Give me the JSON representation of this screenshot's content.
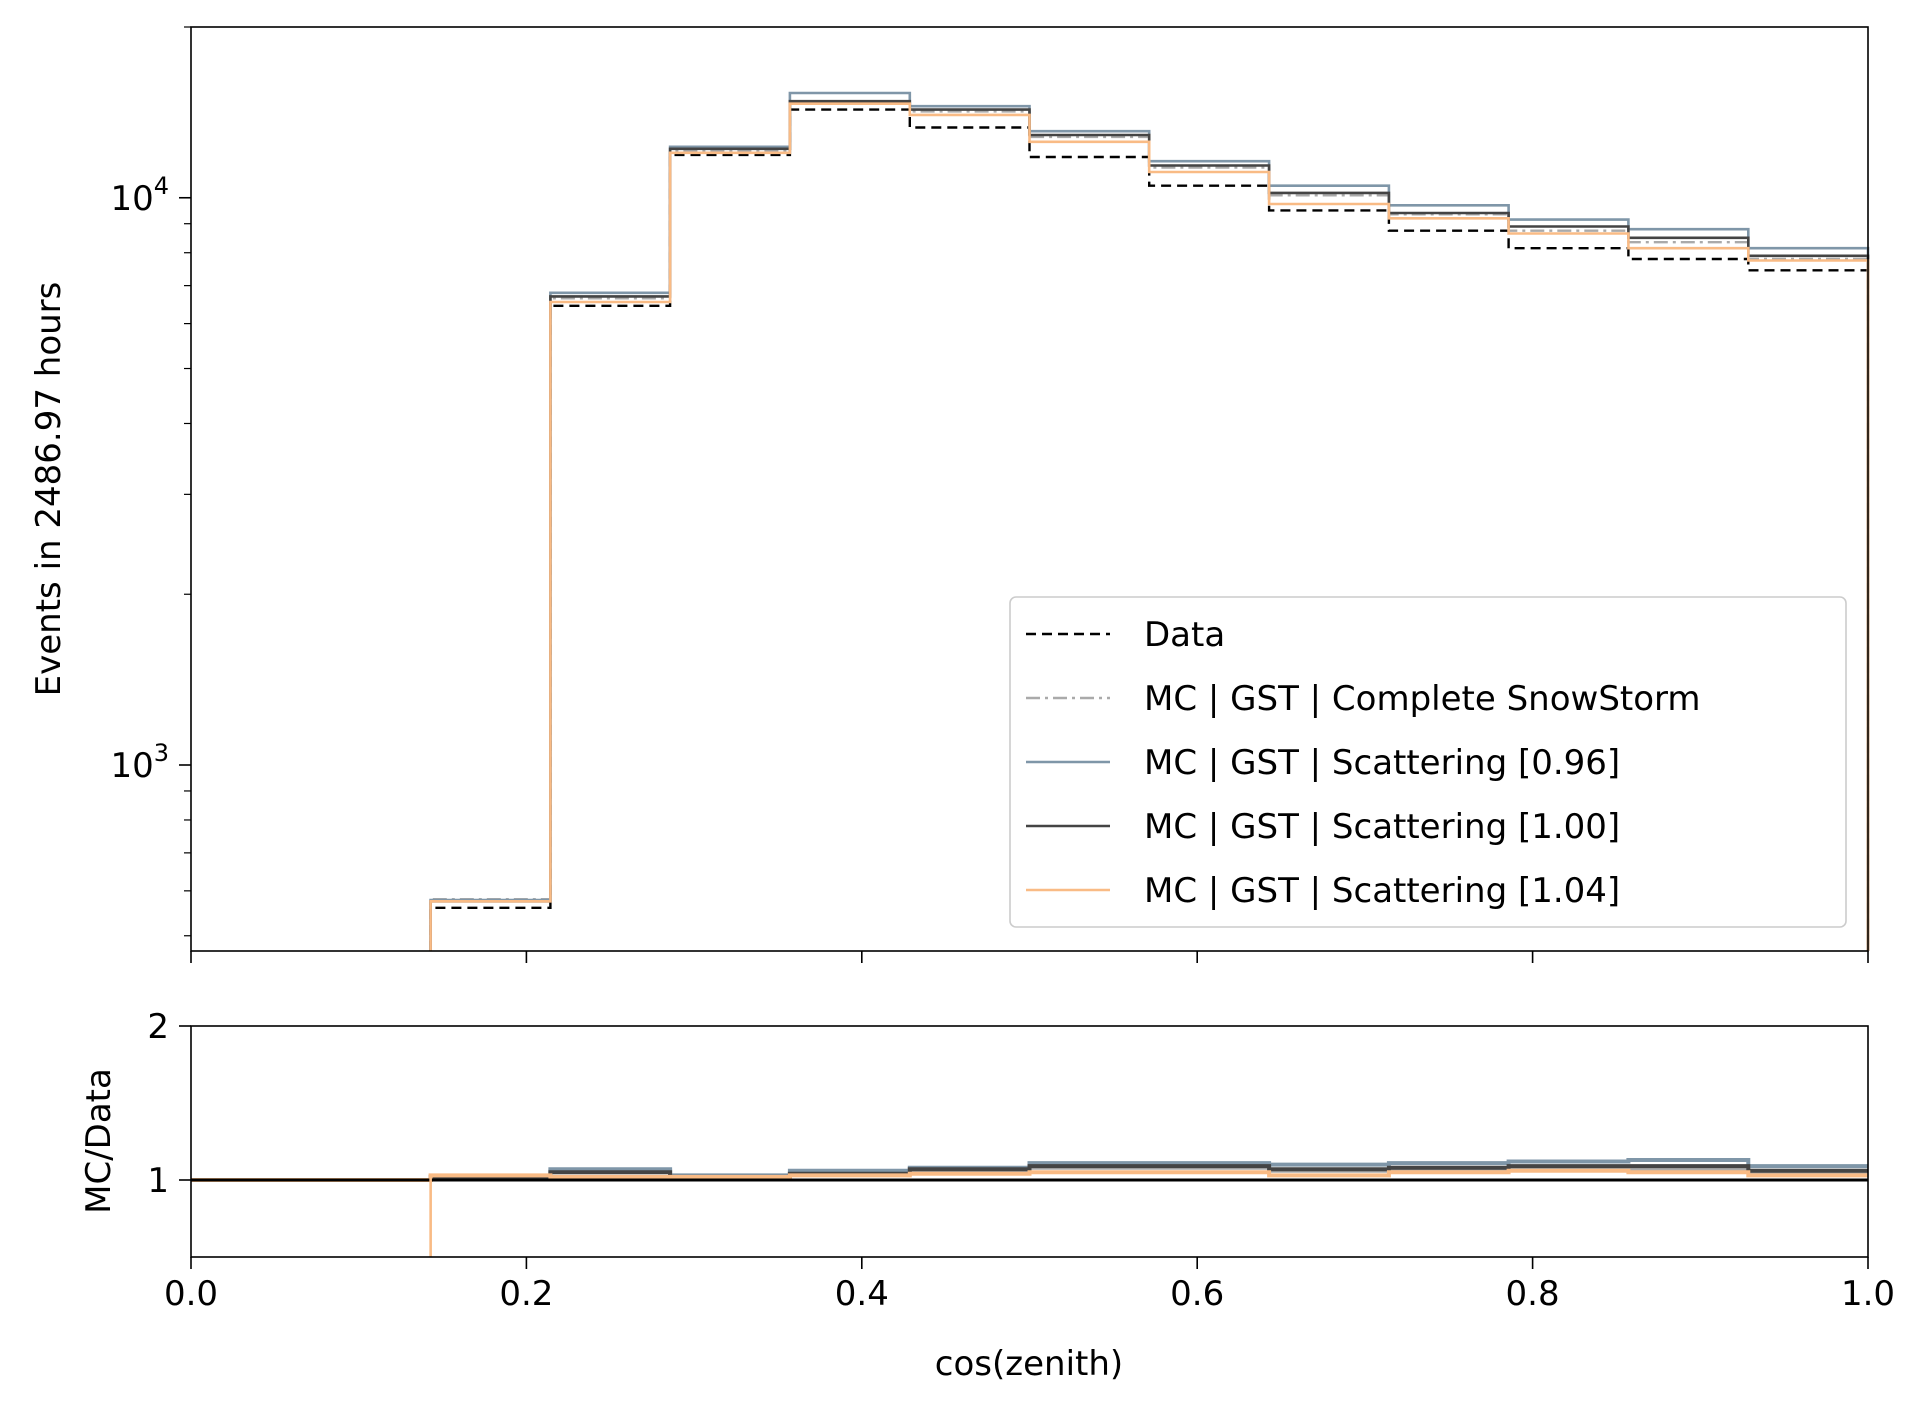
{
  "chart_data": [
    {
      "type": "line",
      "panel": "main",
      "xlabel": "",
      "ylabel": "Events in 2486.97 hours",
      "xlim": [
        0.0,
        1.0
      ],
      "ylim": [
        470,
        20000
      ],
      "yscale": "log",
      "yticks": [
        {
          "value": 10000,
          "base": "10",
          "exp": "4"
        },
        {
          "value": 1000,
          "base": "10",
          "exp": "3"
        }
      ],
      "grid": false,
      "legend_position": "lower right",
      "bin_edges": [
        0.1429,
        0.2143,
        0.2857,
        0.3571,
        0.4286,
        0.5,
        0.5714,
        0.6429,
        0.7143,
        0.7857,
        0.8571,
        0.9286,
        1.0
      ],
      "series": [
        {
          "name": "Data",
          "color": "#000000",
          "style": "dashed",
          "values": [
            560,
            6450,
            11900,
            14300,
            13300,
            11800,
            10500,
            9500,
            8750,
            8150,
            7800,
            7450
          ]
        },
        {
          "name": "MC | GST | Complete SnowStorm",
          "color": "#aaaaaa",
          "style": "dashdot",
          "values": [
            580,
            6650,
            12100,
            14800,
            14200,
            12800,
            11300,
            10100,
            9350,
            8750,
            8350,
            7800
          ]
        },
        {
          "name": "MC | GST | Scattering [0.96]",
          "color": "#7f96a8",
          "style": "solid",
          "values": [
            578,
            6800,
            12300,
            15300,
            14500,
            13100,
            11600,
            10500,
            9700,
            9150,
            8800,
            8150
          ]
        },
        {
          "name": "MC | GST | Scattering [1.00]",
          "color": "#444444",
          "style": "solid",
          "values": [
            575,
            6700,
            12200,
            14800,
            14300,
            12900,
            11400,
            10200,
            9400,
            8900,
            8500,
            7900
          ]
        },
        {
          "name": "MC | GST | Scattering [1.04]",
          "color": "#f9bb85",
          "style": "solid",
          "values": [
            575,
            6550,
            12000,
            14650,
            14000,
            12550,
            11100,
            9750,
            9200,
            8650,
            8150,
            7750
          ]
        }
      ]
    },
    {
      "type": "line",
      "panel": "ratio",
      "xlabel": "cos(zenith)",
      "ylabel": "MC/Data",
      "xlim": [
        0.0,
        1.0
      ],
      "ylim": [
        0.5,
        2.0
      ],
      "yticks": [
        "1",
        "2"
      ],
      "xticks": [
        "0.0",
        "0.2",
        "0.4",
        "0.6",
        "0.8",
        "1.0"
      ],
      "grid": false,
      "bin_edges": [
        0.0,
        0.1429,
        0.2143,
        0.2857,
        0.3571,
        0.4286,
        0.5,
        0.5714,
        0.6429,
        0.7143,
        0.7857,
        0.8571,
        0.9286,
        1.0
      ],
      "series": [
        {
          "ref": "MC | GST | Complete SnowStorm",
          "color": "#aaaaaa",
          "values": [
            1.0,
            1.02,
            1.06,
            1.02,
            1.04,
            1.06,
            1.08,
            1.08,
            1.06,
            1.07,
            1.07,
            1.07,
            1.05
          ]
        },
        {
          "ref": "MC | GST | Scattering [0.96]",
          "color": "#7f96a8",
          "values": [
            1.0,
            1.02,
            1.07,
            1.03,
            1.06,
            1.08,
            1.11,
            1.11,
            1.1,
            1.11,
            1.12,
            1.13,
            1.09
          ]
        },
        {
          "ref": "MC | GST | Scattering [1.00]",
          "color": "#444444",
          "values": [
            1.0,
            1.02,
            1.05,
            1.02,
            1.04,
            1.07,
            1.09,
            1.09,
            1.07,
            1.08,
            1.09,
            1.09,
            1.06
          ]
        },
        {
          "ref": "MC | GST | Scattering [1.04]",
          "color": "#f9bb85",
          "values": [
            1.0,
            1.03,
            1.02,
            1.02,
            1.03,
            1.04,
            1.05,
            1.05,
            1.03,
            1.05,
            1.06,
            1.05,
            1.03
          ]
        },
        {
          "ref": "Data",
          "color": "#000000",
          "style": "solid",
          "values": [
            1.0,
            1.0,
            1.0,
            1.0,
            1.0,
            1.0,
            1.0,
            1.0,
            1.0,
            1.0,
            1.0,
            1.0,
            1.0
          ]
        }
      ]
    }
  ]
}
